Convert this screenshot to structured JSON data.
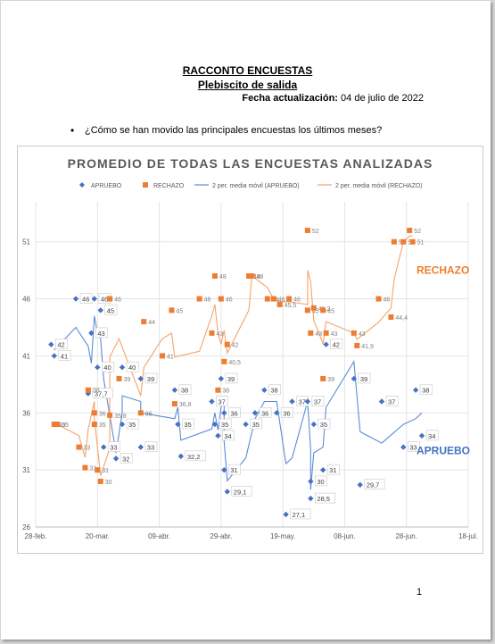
{
  "document": {
    "title": "RACCONTO ENCUESTAS",
    "subtitle": "Plebiscito de salida",
    "update_label": "Fecha actualización:",
    "update_date": "04 de julio de 2022",
    "bullet_text": "¿Cómo se han movido las principales encuestas los últimos meses?",
    "page_number": "1"
  },
  "chart_data": {
    "type": "scatter",
    "title": "PROMEDIO DE TODAS LAS ENCUESTAS ANALIZADAS",
    "legend": [
      "APRUEBO",
      "RECHAZO",
      "2 per. media móvil (APRUEBO)",
      "2 per. media móvil (RECHAZO)"
    ],
    "legend_position": "top",
    "x_ticks": [
      "28-feb.",
      "20-mar.",
      "09-abr.",
      "29-abr.",
      "19-may.",
      "08-jun.",
      "28-jun.",
      "18-jul."
    ],
    "x_range": [
      "2022-02-28",
      "2022-07-18"
    ],
    "y_ticks": [
      26,
      31,
      36,
      41,
      46,
      51
    ],
    "ylim": [
      26,
      54.5
    ],
    "colors": {
      "apruebo": "#4472c4",
      "rechazo": "#ed7d31",
      "apruebo_line": "#5b8bd6",
      "rechazo_line": "#f4a46a"
    },
    "series_labels": {
      "rechazo": "RECHAZO",
      "apruebo": "APRUEBO"
    },
    "series": [
      {
        "name": "APRUEBO",
        "marker": "diamond",
        "points": [
          {
            "x": "2022-03-05",
            "y": 42,
            "label": "42"
          },
          {
            "x": "2022-03-06",
            "y": 41,
            "label": "41"
          },
          {
            "x": "2022-03-13",
            "y": 46,
            "label": "46"
          },
          {
            "x": "2022-03-17",
            "y": 37.7,
            "label": "37,7"
          },
          {
            "x": "2022-03-18",
            "y": 43,
            "label": "43"
          },
          {
            "x": "2022-03-19",
            "y": 46,
            "label": "46"
          },
          {
            "x": "2022-03-20",
            "y": 40,
            "label": "40"
          },
          {
            "x": "2022-03-21",
            "y": 45,
            "label": "45"
          },
          {
            "x": "2022-03-22",
            "y": 33,
            "label": "33"
          },
          {
            "x": "2022-03-26",
            "y": 32,
            "label": "32"
          },
          {
            "x": "2022-03-28",
            "y": 40,
            "label": "40"
          },
          {
            "x": "2022-03-28",
            "y": 35,
            "label": "35"
          },
          {
            "x": "2022-04-03",
            "y": 39,
            "label": "39"
          },
          {
            "x": "2022-04-03",
            "y": 33,
            "label": "33"
          },
          {
            "x": "2022-04-14",
            "y": 38,
            "label": "38"
          },
          {
            "x": "2022-04-15",
            "y": 35,
            "label": "35"
          },
          {
            "x": "2022-04-16",
            "y": 32.2,
            "label": "32,2"
          },
          {
            "x": "2022-04-26",
            "y": 37,
            "label": "37"
          },
          {
            "x": "2022-04-27",
            "y": 35,
            "label": "35"
          },
          {
            "x": "2022-04-28",
            "y": 34,
            "label": "34"
          },
          {
            "x": "2022-04-29",
            "y": 39,
            "label": "39"
          },
          {
            "x": "2022-04-30",
            "y": 36,
            "label": "36"
          },
          {
            "x": "2022-04-30",
            "y": 31,
            "label": "31"
          },
          {
            "x": "2022-05-01",
            "y": 29.1,
            "label": "29,1"
          },
          {
            "x": "2022-05-07",
            "y": 35,
            "label": "35"
          },
          {
            "x": "2022-05-10",
            "y": 36,
            "label": "36"
          },
          {
            "x": "2022-05-13",
            "y": 38,
            "label": "38"
          },
          {
            "x": "2022-05-17",
            "y": 36,
            "label": "36"
          },
          {
            "x": "2022-05-20",
            "y": 27.1,
            "label": "27,1"
          },
          {
            "x": "2022-05-22",
            "y": 37,
            "label": "37"
          },
          {
            "x": "2022-05-27",
            "y": 37,
            "label": "37"
          },
          {
            "x": "2022-05-28",
            "y": 28.5,
            "label": "28,5"
          },
          {
            "x": "2022-05-28",
            "y": 30,
            "label": "30"
          },
          {
            "x": "2022-05-29",
            "y": 35,
            "label": "35"
          },
          {
            "x": "2022-06-01",
            "y": 31,
            "label": "31"
          },
          {
            "x": "2022-06-02",
            "y": 42,
            "label": "42"
          },
          {
            "x": "2022-06-11",
            "y": 39,
            "label": "39"
          },
          {
            "x": "2022-06-13",
            "y": 29.7,
            "label": "29,7"
          },
          {
            "x": "2022-06-20",
            "y": 37,
            "label": "37"
          },
          {
            "x": "2022-06-27",
            "y": 33,
            "label": "33"
          },
          {
            "x": "2022-07-01",
            "y": 38,
            "label": "38"
          },
          {
            "x": "2022-07-03",
            "y": 34,
            "label": "34"
          }
        ]
      },
      {
        "name": "RECHAZO",
        "marker": "square",
        "points": [
          {
            "x": "2022-03-06",
            "y": 35,
            "label": "35"
          },
          {
            "x": "2022-03-07",
            "y": 35,
            "label": "35"
          },
          {
            "x": "2022-03-14",
            "y": 33,
            "label": "33"
          },
          {
            "x": "2022-03-16",
            "y": 31.2,
            "label": "31"
          },
          {
            "x": "2022-03-17",
            "y": 38,
            "label": "38"
          },
          {
            "x": "2022-03-19",
            "y": 36,
            "label": "36"
          },
          {
            "x": "2022-03-19",
            "y": 35,
            "label": "35"
          },
          {
            "x": "2022-03-20",
            "y": 31,
            "label": "31"
          },
          {
            "x": "2022-03-21",
            "y": 30,
            "label": "30"
          },
          {
            "x": "2022-03-24",
            "y": 35.8,
            "label": "35,8"
          },
          {
            "x": "2022-03-24",
            "y": 46,
            "label": "46"
          },
          {
            "x": "2022-03-27",
            "y": 39,
            "label": "39"
          },
          {
            "x": "2022-04-03",
            "y": 36,
            "label": "36"
          },
          {
            "x": "2022-04-04",
            "y": 44,
            "label": "44"
          },
          {
            "x": "2022-04-10",
            "y": 41,
            "label": "41"
          },
          {
            "x": "2022-04-13",
            "y": 45,
            "label": "45"
          },
          {
            "x": "2022-04-14",
            "y": 36.8,
            "label": "36,8"
          },
          {
            "x": "2022-04-22",
            "y": 46,
            "label": "46"
          },
          {
            "x": "2022-04-26",
            "y": 43,
            "label": "43"
          },
          {
            "x": "2022-04-27",
            "y": 48,
            "label": "48"
          },
          {
            "x": "2022-04-28",
            "y": 38,
            "label": "38"
          },
          {
            "x": "2022-04-29",
            "y": 46,
            "label": "46"
          },
          {
            "x": "2022-04-30",
            "y": 40.5,
            "label": "40,5"
          },
          {
            "x": "2022-05-01",
            "y": 42,
            "label": "42"
          },
          {
            "x": "2022-05-08",
            "y": 48,
            "label": "48"
          },
          {
            "x": "2022-05-09",
            "y": 48,
            "label": "48"
          },
          {
            "x": "2022-05-14",
            "y": 46,
            "label": "46"
          },
          {
            "x": "2022-05-16",
            "y": 46,
            "label": "46"
          },
          {
            "x": "2022-05-18",
            "y": 45.5,
            "label": "45,5"
          },
          {
            "x": "2022-05-21",
            "y": 46,
            "label": "46"
          },
          {
            "x": "2022-05-27",
            "y": 45,
            "label": "45"
          },
          {
            "x": "2022-05-27",
            "y": 52,
            "label": "52"
          },
          {
            "x": "2022-05-28",
            "y": 43,
            "label": "43"
          },
          {
            "x": "2022-05-29",
            "y": 45.2,
            "label": "45,2"
          },
          {
            "x": "2022-06-01",
            "y": 39,
            "label": "39"
          },
          {
            "x": "2022-06-01",
            "y": 45,
            "label": "45"
          },
          {
            "x": "2022-06-02",
            "y": 43,
            "label": "43"
          },
          {
            "x": "2022-06-11",
            "y": 43,
            "label": "43"
          },
          {
            "x": "2022-06-12",
            "y": 41.9,
            "label": "41,9"
          },
          {
            "x": "2022-06-19",
            "y": 46,
            "label": "46"
          },
          {
            "x": "2022-06-23",
            "y": 44.4,
            "label": "44,4"
          },
          {
            "x": "2022-06-24",
            "y": 51,
            "label": "51"
          },
          {
            "x": "2022-06-27",
            "y": 51,
            "label": "51"
          },
          {
            "x": "2022-06-29",
            "y": 52,
            "label": "52"
          },
          {
            "x": "2022-06-30",
            "y": 51,
            "label": "51"
          }
        ]
      }
    ]
  }
}
